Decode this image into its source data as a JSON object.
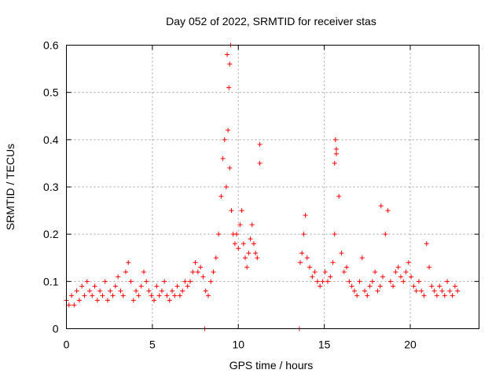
{
  "chart_data": {
    "type": "scatter",
    "title": "Day 052 of 2022, SRMTID for receiver stas",
    "xlabel": "GPS time / hours",
    "ylabel": "SRMTID / TECUs",
    "xlim": [
      0,
      24
    ],
    "ylim": [
      0,
      0.6
    ],
    "xticks": [
      0,
      5,
      10,
      15,
      20
    ],
    "xtick_labels": [
      "0",
      "5",
      "10",
      "15",
      "20"
    ],
    "yticks": [
      0,
      0.1,
      0.2,
      0.3,
      0.4,
      0.5,
      0.6
    ],
    "ytick_labels": [
      "0",
      "0.1",
      "0.2",
      "0.3",
      "0.4",
      "0.5",
      "0.6"
    ],
    "grid": true,
    "marker": "plus",
    "series": [
      {
        "name": "SRMTID",
        "color": "#ff0000",
        "x": [
          0.0,
          0.15,
          0.3,
          0.45,
          0.6,
          0.75,
          0.9,
          1.05,
          1.2,
          1.35,
          1.5,
          1.65,
          1.8,
          1.95,
          2.1,
          2.25,
          2.4,
          2.55,
          2.7,
          2.85,
          3.0,
          3.15,
          3.3,
          3.45,
          3.6,
          3.75,
          3.9,
          4.05,
          4.2,
          4.35,
          4.5,
          4.65,
          4.8,
          4.95,
          5.1,
          5.25,
          5.4,
          5.55,
          5.7,
          5.85,
          6.0,
          6.15,
          6.3,
          6.45,
          6.6,
          6.75,
          6.9,
          7.05,
          7.2,
          7.35,
          7.5,
          7.65,
          7.8,
          7.95,
          8.1,
          8.25,
          8.4,
          8.55,
          8.7,
          8.85,
          9.0,
          9.1,
          9.2,
          9.3,
          9.4,
          9.5,
          9.6,
          9.7,
          9.8,
          9.9,
          10.0,
          10.1,
          10.2,
          10.3,
          10.4,
          10.5,
          10.6,
          10.7,
          10.8,
          10.9,
          11.0,
          11.1,
          13.6,
          13.7,
          13.8,
          13.9,
          14.0,
          14.15,
          14.3,
          14.45,
          14.6,
          14.75,
          14.9,
          15.05,
          15.2,
          15.35,
          15.5,
          15.6,
          15.7,
          15.85,
          16.0,
          16.15,
          16.3,
          16.45,
          16.6,
          16.75,
          16.9,
          17.05,
          17.2,
          17.35,
          17.5,
          17.65,
          17.8,
          17.95,
          18.1,
          18.25,
          18.4,
          18.55,
          18.7,
          18.85,
          19.0,
          19.15,
          19.3,
          19.45,
          19.6,
          19.75,
          19.9,
          20.05,
          20.2,
          20.35,
          20.5,
          20.65,
          20.8,
          20.95,
          21.1,
          21.25,
          21.4,
          21.55,
          21.7,
          21.85,
          22.0,
          22.15,
          22.3,
          22.45,
          22.6,
          22.75
        ],
        "y": [
          0.06,
          0.05,
          0.07,
          0.05,
          0.08,
          0.06,
          0.09,
          0.07,
          0.1,
          0.08,
          0.07,
          0.09,
          0.06,
          0.08,
          0.07,
          0.1,
          0.06,
          0.08,
          0.07,
          0.09,
          0.11,
          0.08,
          0.07,
          0.12,
          0.14,
          0.1,
          0.06,
          0.08,
          0.07,
          0.09,
          0.12,
          0.1,
          0.08,
          0.07,
          0.06,
          0.09,
          0.07,
          0.08,
          0.1,
          0.07,
          0.06,
          0.08,
          0.07,
          0.09,
          0.07,
          0.08,
          0.1,
          0.09,
          0.1,
          0.12,
          0.14,
          0.12,
          0.13,
          0.11,
          0.08,
          0.07,
          0.1,
          0.12,
          0.15,
          0.2,
          0.28,
          0.36,
          0.4,
          0.3,
          0.42,
          0.34,
          0.25,
          0.2,
          0.18,
          0.2,
          0.17,
          0.22,
          0.25,
          0.18,
          0.15,
          0.13,
          0.16,
          0.19,
          0.22,
          0.18,
          0.16,
          0.15,
          0.14,
          0.16,
          0.2,
          0.24,
          0.15,
          0.13,
          0.11,
          0.12,
          0.1,
          0.09,
          0.1,
          0.12,
          0.1,
          0.11,
          0.14,
          0.2,
          0.38,
          0.28,
          0.16,
          0.12,
          0.13,
          0.1,
          0.09,
          0.08,
          0.07,
          0.1,
          0.15,
          0.08,
          0.07,
          0.09,
          0.1,
          0.12,
          0.08,
          0.09,
          0.11,
          0.2,
          0.25,
          0.1,
          0.09,
          0.12,
          0.13,
          0.11,
          0.1,
          0.12,
          0.14,
          0.11,
          0.09,
          0.08,
          0.1,
          0.08,
          0.07,
          0.18,
          0.13,
          0.09,
          0.08,
          0.07,
          0.09,
          0.08,
          0.07,
          0.1,
          0.08,
          0.07,
          0.09,
          0.08
        ]
      }
    ],
    "extra_points": {
      "x": [
        9.55,
        9.5,
        9.45,
        9.35,
        11.25,
        11.25,
        15.65,
        15.7,
        15.6,
        18.3,
        8.05,
        13.55
      ],
      "y": [
        0.6,
        0.56,
        0.51,
        0.58,
        0.39,
        0.35,
        0.4,
        0.37,
        0.35,
        0.26,
        0.0,
        0.0
      ]
    }
  }
}
